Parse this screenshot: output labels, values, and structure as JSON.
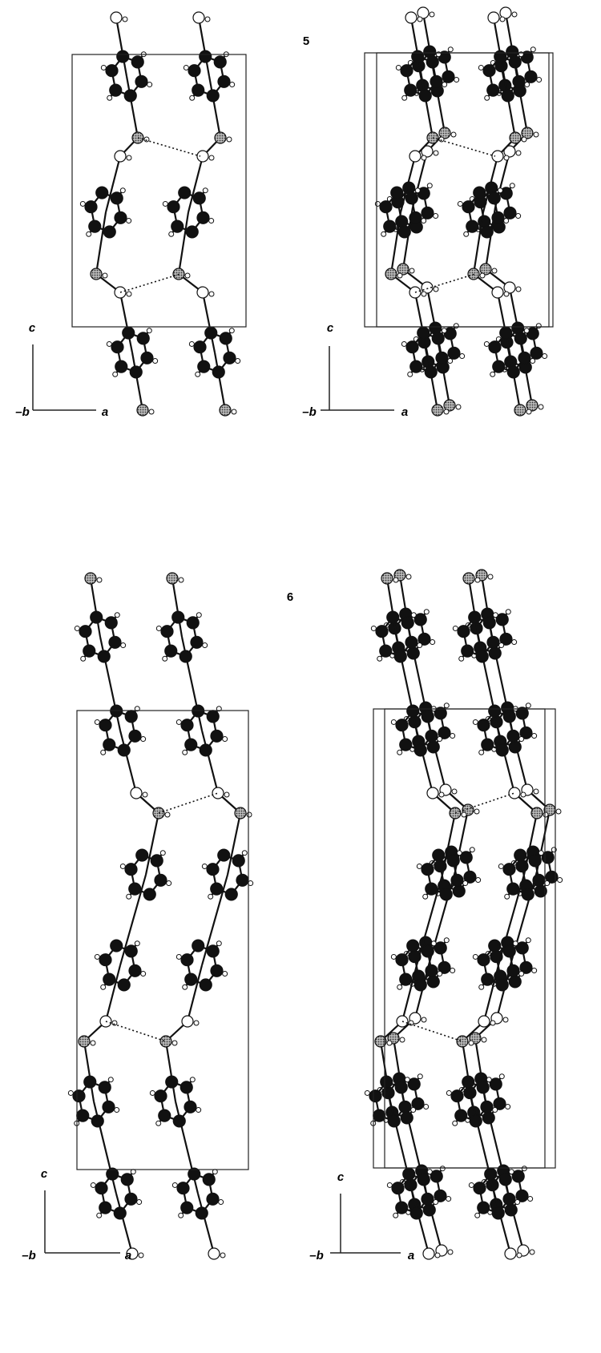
{
  "figures": [
    {
      "label": "5",
      "panels": [
        {
          "axes": {
            "vertical": "c",
            "origin": "–b",
            "horizontal": "a"
          }
        },
        {
          "axes": {
            "vertical": "c",
            "origin": "–b",
            "horizontal": "a"
          }
        }
      ]
    },
    {
      "label": "6",
      "panels": [
        {
          "axes": {
            "vertical": "c",
            "origin": "–b",
            "horizontal": "a"
          }
        },
        {
          "axes": {
            "vertical": "c",
            "origin": "–b",
            "horizontal": "a"
          }
        }
      ]
    }
  ]
}
